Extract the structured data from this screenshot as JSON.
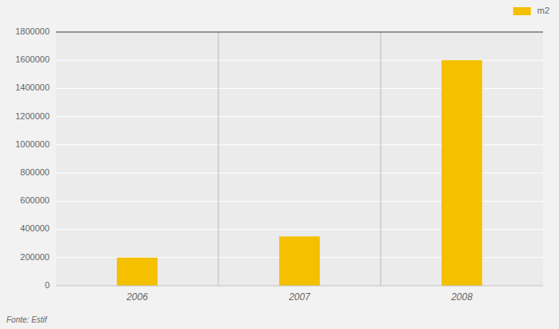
{
  "chart_data": {
    "type": "bar",
    "categories": [
      "2006",
      "2007",
      "2008"
    ],
    "series": [
      {
        "name": "m2",
        "color": "#F5C000",
        "values": [
          200000,
          350000,
          1600000
        ]
      }
    ],
    "ylim": [
      0,
      1800000
    ],
    "yticks": [
      0,
      200000,
      400000,
      600000,
      800000,
      1000000,
      1200000,
      1400000,
      1600000,
      1800000
    ],
    "grid": true,
    "legend": "upper right",
    "annotations": [
      "Fonte: Estif"
    ]
  }
}
